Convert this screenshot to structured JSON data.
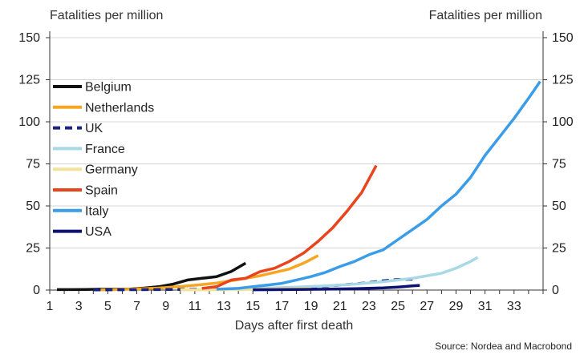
{
  "chart_data": {
    "type": "line",
    "title": "",
    "ylabel_left": "Fatalities per million",
    "ylabel_right": "Fatalities per million",
    "xlabel": "Days after first death",
    "source": "Source: Nordea and Macrobond",
    "xlim": [
      1,
      35
    ],
    "ylim": [
      0,
      150
    ],
    "x_ticks": [
      1,
      3,
      5,
      7,
      9,
      11,
      13,
      15,
      17,
      19,
      21,
      23,
      25,
      27,
      29,
      31,
      33
    ],
    "y_ticks": [
      0,
      25,
      50,
      75,
      100,
      125,
      150
    ],
    "grid": "horizontal",
    "legend_position": "left",
    "series": [
      {
        "name": "Belgium",
        "color": "#111111",
        "dash": false,
        "points": [
          [
            1.5,
            0.3
          ],
          [
            2.5,
            0.3
          ],
          [
            3.5,
            0.4
          ],
          [
            4.5,
            0.5
          ],
          [
            5.5,
            0.5
          ],
          [
            6.5,
            0.6
          ],
          [
            7.5,
            1.2
          ],
          [
            8.5,
            2
          ],
          [
            9.5,
            3.5
          ],
          [
            10.5,
            6
          ],
          [
            11.5,
            7
          ],
          [
            12.5,
            8
          ],
          [
            13.5,
            11
          ],
          [
            14.5,
            16
          ]
        ]
      },
      {
        "name": "Netherlands",
        "color": "#f5a623",
        "dash": false,
        "points": [
          [
            4.5,
            0.2
          ],
          [
            5.5,
            0.3
          ],
          [
            6.5,
            0.5
          ],
          [
            7.5,
            0.8
          ],
          [
            8.5,
            1.2
          ],
          [
            9.5,
            1.8
          ],
          [
            10.5,
            2.5
          ],
          [
            11.5,
            3.3
          ],
          [
            12.5,
            4.2
          ],
          [
            13.5,
            5.5
          ],
          [
            14.5,
            7
          ],
          [
            15.5,
            8.5
          ],
          [
            16.5,
            10.5
          ],
          [
            17.5,
            12.5
          ],
          [
            18.5,
            16
          ],
          [
            19.5,
            20.5
          ]
        ]
      },
      {
        "name": "UK",
        "color": "#1a237e",
        "dash": true,
        "points": [
          [
            4,
            0.1
          ],
          [
            6,
            0.2
          ],
          [
            8,
            0.3
          ],
          [
            10,
            0.4
          ],
          [
            12,
            0.5
          ],
          [
            14,
            0.6
          ],
          [
            16,
            0.8
          ],
          [
            18,
            1.2
          ],
          [
            19,
            1.8
          ],
          [
            20,
            2.3
          ],
          [
            21,
            3
          ],
          [
            22,
            3.6
          ],
          [
            23,
            4.5
          ],
          [
            24,
            5.5
          ],
          [
            25,
            6.3
          ],
          [
            26,
            6.5
          ]
        ]
      },
      {
        "name": "France",
        "color": "#a9d8e6",
        "dash": false,
        "points": [
          [
            12.5,
            0.5
          ],
          [
            14,
            0.8
          ],
          [
            16,
            1.2
          ],
          [
            18,
            1.8
          ],
          [
            20,
            2.5
          ],
          [
            22,
            3.5
          ],
          [
            24,
            5
          ],
          [
            26,
            7
          ],
          [
            27,
            8.5
          ],
          [
            28,
            10
          ],
          [
            29,
            13
          ],
          [
            30,
            17
          ],
          [
            30.5,
            19.5
          ]
        ]
      },
      {
        "name": "Germany",
        "color": "#f3e39a",
        "dash": false,
        "points": [
          [
            10,
            0.1
          ],
          [
            12,
            0.2
          ],
          [
            14,
            0.3
          ],
          [
            16,
            0.5
          ],
          [
            18,
            0.8
          ],
          [
            19,
            1
          ]
        ]
      },
      {
        "name": "Spain",
        "color": "#e8441d",
        "dash": false,
        "points": [
          [
            11.5,
            1
          ],
          [
            12.5,
            2
          ],
          [
            13.5,
            6
          ],
          [
            14.5,
            7
          ],
          [
            15.5,
            11
          ],
          [
            16.5,
            13
          ],
          [
            17.5,
            17
          ],
          [
            18.5,
            22
          ],
          [
            19.5,
            29
          ],
          [
            20.5,
            37
          ],
          [
            21.5,
            47
          ],
          [
            22.5,
            58
          ],
          [
            23.5,
            74
          ]
        ]
      },
      {
        "name": "Italy",
        "color": "#3b9de8",
        "dash": false,
        "points": [
          [
            12.5,
            0.5
          ],
          [
            14,
            1
          ],
          [
            15,
            2
          ],
          [
            16,
            3
          ],
          [
            17,
            4
          ],
          [
            18,
            6
          ],
          [
            19,
            8
          ],
          [
            20,
            10.5
          ],
          [
            21,
            14
          ],
          [
            22,
            17
          ],
          [
            23,
            21
          ],
          [
            24,
            24
          ],
          [
            25,
            30
          ],
          [
            26,
            36
          ],
          [
            27,
            42
          ],
          [
            28,
            50
          ],
          [
            29,
            57
          ],
          [
            30,
            67
          ],
          [
            31,
            80
          ],
          [
            32,
            91
          ],
          [
            33,
            102
          ],
          [
            34,
            114
          ],
          [
            34.8,
            124
          ]
        ]
      },
      {
        "name": "USA",
        "color": "#0d1272",
        "dash": false,
        "points": [
          [
            15,
            0.2
          ],
          [
            18,
            0.4
          ],
          [
            20,
            0.5
          ],
          [
            22,
            0.8
          ],
          [
            24,
            1.3
          ],
          [
            25,
            1.8
          ],
          [
            26,
            2.5
          ],
          [
            26.5,
            2.8
          ]
        ]
      }
    ]
  }
}
